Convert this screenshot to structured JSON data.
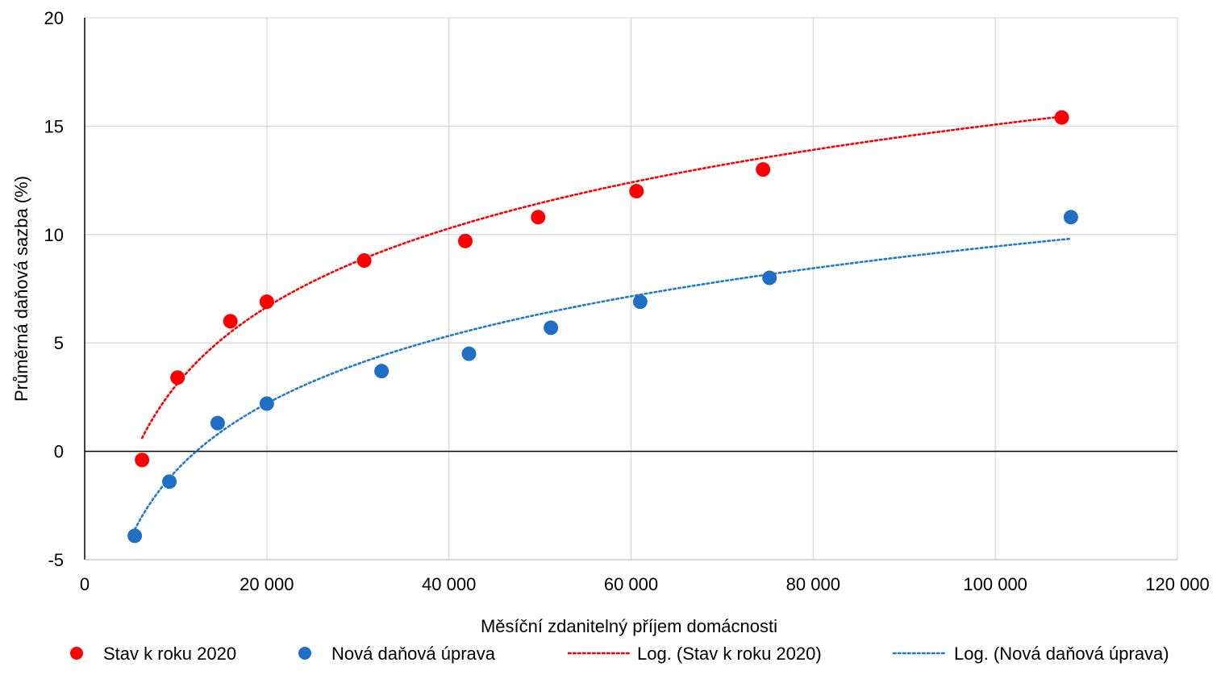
{
  "chart_data": {
    "type": "scatter",
    "title": "",
    "xlabel": "Měsíční zdanitelný příjem domácnosti",
    "ylabel": "Průměrná daňová sazba (%)",
    "xlim": [
      0,
      120000
    ],
    "ylim": [
      -5,
      20
    ],
    "x_ticks": [
      0,
      20000,
      40000,
      60000,
      80000,
      100000,
      120000
    ],
    "x_tick_labels": [
      "0",
      "20 000",
      "40 000",
      "60 000",
      "80 000",
      "100 000",
      "120 000"
    ],
    "y_ticks": [
      -5,
      0,
      5,
      10,
      15,
      20
    ],
    "y_tick_labels": [
      "-5",
      "0",
      "5",
      "10",
      "15",
      "20"
    ],
    "grid": true,
    "legend_position": "bottom",
    "series": [
      {
        "name": "Stav k roku 2020",
        "kind": "points",
        "color": "#ff0000",
        "points": [
          [
            6300,
            -0.4
          ],
          [
            10200,
            3.4
          ],
          [
            16000,
            6.0
          ],
          [
            20000,
            6.9
          ],
          [
            30700,
            8.8
          ],
          [
            41800,
            9.7
          ],
          [
            49800,
            10.8
          ],
          [
            60600,
            12.0
          ],
          [
            74500,
            13.0
          ],
          [
            107300,
            15.4
          ]
        ]
      },
      {
        "name": "Nová daňová úprava",
        "kind": "points",
        "color": "#1f6fc5",
        "points": [
          [
            5500,
            -3.9
          ],
          [
            9300,
            -1.4
          ],
          [
            14600,
            1.3
          ],
          [
            20000,
            2.2
          ],
          [
            32600,
            3.7
          ],
          [
            42200,
            4.5
          ],
          [
            51200,
            5.7
          ],
          [
            61000,
            6.9
          ],
          [
            75200,
            8.0
          ],
          [
            108300,
            10.8
          ]
        ]
      },
      {
        "name": "Log. (Stav k roku 2020)",
        "kind": "trendline",
        "color": "#ff0000",
        "x_range": [
          6300,
          107300
        ],
        "log_fit": {
          "a": 5.23,
          "b": -45.14
        }
      },
      {
        "name": "Log. (Nová daňová úprava)",
        "kind": "trendline",
        "color": "#1f7bd0",
        "x_range": [
          5500,
          108300
        ],
        "log_fit": {
          "a": 4.5,
          "b": -42.36
        }
      }
    ]
  }
}
